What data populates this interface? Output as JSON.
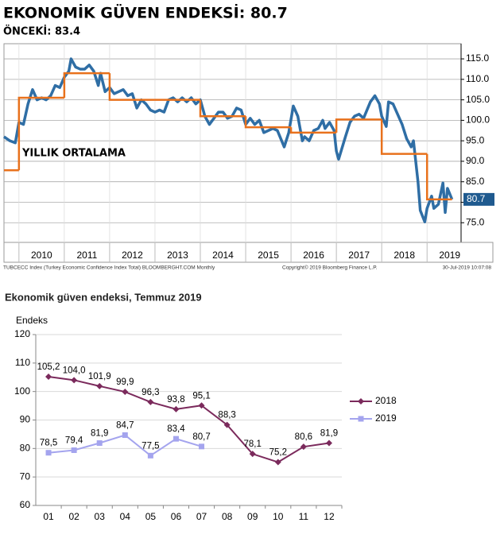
{
  "chart_data": [
    {
      "type": "line",
      "title": "EKONOMİK GÜVEN ENDEKSİ: 80.7",
      "subtitle": "ÖNCEKİ: 83.4",
      "source": "TUBCECC Index (Turkey Economic Confidence Index Total) BLOOMBERGHT.COM Monthly",
      "copyright": "Copyright© 2019 Bloomberg Finance L.P.",
      "timestamp": "30-Jul-2019 10:07:08",
      "last_value": 80.7,
      "xlim": [
        2009.67,
        2019.75
      ],
      "xticks": [
        2010,
        2011,
        2012,
        2013,
        2014,
        2015,
        2016,
        2017,
        2018,
        2019
      ],
      "ylim": [
        70.2,
        118.7
      ],
      "yticks": [
        {
          "value": 75,
          "label": "75.0"
        },
        {
          "value": 80,
          "label": "80.0"
        },
        {
          "value": 85,
          "label": "85.0"
        },
        {
          "value": 90,
          "label": "90.0"
        },
        {
          "value": 95,
          "label": "95.0"
        },
        {
          "value": 100,
          "label": "100.0"
        },
        {
          "value": 105,
          "label": "105.0"
        },
        {
          "value": 110,
          "label": "110.0"
        },
        {
          "value": 115,
          "label": "115.0"
        }
      ],
      "grid": true,
      "series": [
        {
          "color": "#2f6ea5",
          "x": [
            2009.67,
            2009.8,
            2009.92,
            2010.0,
            2010.1,
            2010.2,
            2010.3,
            2010.4,
            2010.5,
            2010.6,
            2010.7,
            2010.8,
            2010.9,
            2011.0,
            2011.1,
            2011.15,
            2011.25,
            2011.35,
            2011.45,
            2011.55,
            2011.65,
            2011.75,
            2011.8,
            2011.9,
            2012.0,
            2012.1,
            2012.2,
            2012.3,
            2012.4,
            2012.5,
            2012.6,
            2012.7,
            2012.8,
            2012.9,
            2013.0,
            2013.1,
            2013.2,
            2013.3,
            2013.4,
            2013.5,
            2013.6,
            2013.7,
            2013.8,
            2013.9,
            2014.0,
            2014.1,
            2014.2,
            2014.3,
            2014.4,
            2014.5,
            2014.6,
            2014.7,
            2014.8,
            2014.9,
            2015.0,
            2015.1,
            2015.2,
            2015.3,
            2015.4,
            2015.5,
            2015.6,
            2015.7,
            2015.85,
            2015.95,
            2016.05,
            2016.15,
            2016.25,
            2016.3,
            2016.4,
            2016.5,
            2016.6,
            2016.7,
            2016.75,
            2016.85,
            2016.95,
            2017.0,
            2017.05,
            2017.2,
            2017.3,
            2017.4,
            2017.5,
            2017.6,
            2017.75,
            2017.85,
            2017.95,
            2018.0,
            2018.1,
            2018.15,
            2018.25,
            2018.35,
            2018.45,
            2018.55,
            2018.65,
            2018.7,
            2018.8,
            2018.85,
            2018.95,
            2019.0,
            2019.1,
            2019.15,
            2019.25,
            2019.35,
            2019.4,
            2019.45,
            2019.55
          ],
          "values": [
            96.0,
            95.0,
            94.5,
            99.5,
            99.0,
            104.0,
            107.5,
            105.0,
            105.5,
            105.0,
            106.0,
            108.5,
            108.0,
            110.5,
            112.0,
            115.0,
            113.0,
            112.5,
            112.5,
            113.5,
            112.0,
            108.5,
            111.5,
            107.0,
            108.0,
            106.5,
            107.0,
            107.5,
            106.0,
            106.5,
            103.0,
            105.0,
            104.0,
            102.5,
            102.0,
            102.5,
            102.0,
            105.0,
            105.5,
            104.5,
            105.5,
            104.5,
            105.5,
            104.0,
            105.0,
            101.0,
            99.0,
            100.5,
            102.0,
            102.0,
            100.5,
            101.0,
            103.0,
            102.5,
            99.0,
            100.5,
            99.0,
            100.0,
            97.0,
            97.5,
            98.0,
            97.5,
            93.5,
            97.0,
            103.5,
            101.0,
            95.0,
            96.0,
            95.0,
            97.5,
            98.0,
            100.0,
            98.0,
            99.5,
            97.5,
            92.5,
            90.5,
            96.0,
            99.5,
            101.0,
            101.5,
            100.5,
            104.5,
            106.0,
            104.0,
            101.0,
            98.5,
            104.5,
            104.0,
            101.5,
            99.0,
            95.5,
            93.5,
            95.0,
            85.0,
            78.0,
            75.2,
            78.5,
            81.5,
            78.5,
            79.5,
            84.7,
            77.5,
            83.4,
            80.7
          ]
        },
        {
          "name": "YILLIK ORTALAMA",
          "color": "#e8711c",
          "step": true,
          "x": [
            2009.67,
            2010,
            2011,
            2012,
            2013,
            2014,
            2015,
            2016,
            2017,
            2018,
            2019
          ],
          "values": [
            87.8,
            105.5,
            111.5,
            105.0,
            105.0,
            101.0,
            98.3,
            97.0,
            100.2,
            91.8,
            80.7
          ]
        }
      ]
    },
    {
      "type": "line",
      "title": "Ekonomik güven endeksi, Temmuz 2019",
      "ylabel": "Endeks",
      "categories": [
        "01",
        "02",
        "03",
        "04",
        "05",
        "06",
        "07",
        "08",
        "09",
        "10",
        "11",
        "12"
      ],
      "ylim": [
        60,
        120
      ],
      "yticks": [
        60,
        70,
        80,
        90,
        100,
        110,
        120
      ],
      "grid": true,
      "legend": "right",
      "series": [
        {
          "name": "2018",
          "color": "#7b2a5c",
          "marker": "diamond",
          "values": [
            105.2,
            104.0,
            101.9,
            99.9,
            96.3,
            93.8,
            95.1,
            88.3,
            78.1,
            75.2,
            80.6,
            81.9
          ],
          "value_labels": [
            "105,2",
            "104,0",
            "101,9",
            "99,9",
            "96,3",
            "93,8",
            "95,1",
            "88,3",
            "78,1",
            "75,2",
            "80,6",
            "81,9"
          ]
        },
        {
          "name": "2019",
          "color": "#a4a4ee",
          "marker": "square",
          "values": [
            78.5,
            79.4,
            81.9,
            84.7,
            77.5,
            83.4,
            80.7,
            null,
            null,
            null,
            null,
            null
          ],
          "value_labels": [
            "78,5",
            "79,4",
            "81,9",
            "84,7",
            "77,5",
            "83,4",
            "80,7",
            null,
            null,
            null,
            null,
            null
          ]
        }
      ]
    }
  ]
}
